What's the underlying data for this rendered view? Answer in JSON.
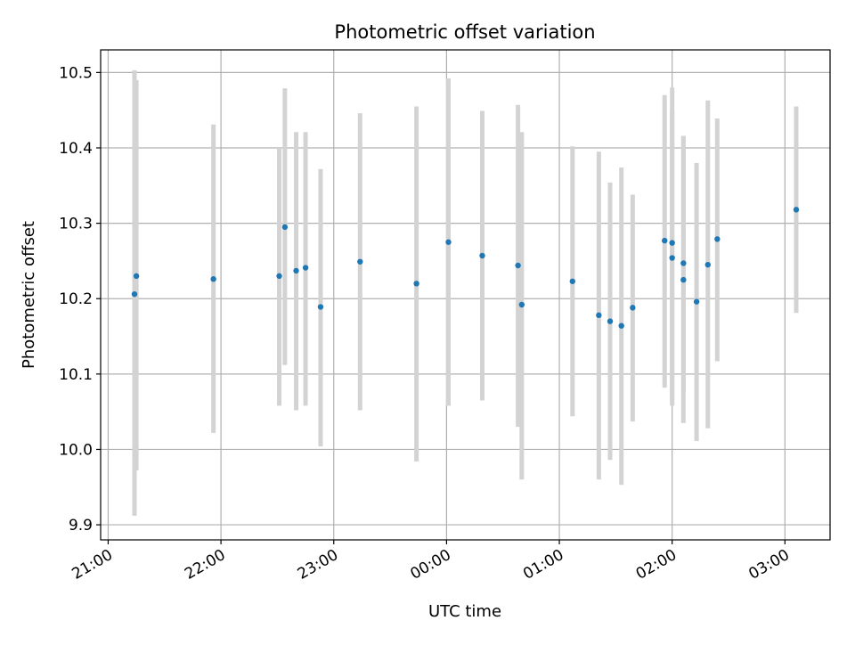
{
  "chart_data": {
    "type": "scatter",
    "title": "Photometric offset variation",
    "xlabel": "UTC time",
    "ylabel": "Photometric offset",
    "xlim": [
      "20:56",
      "03:24"
    ],
    "ylim": [
      9.88,
      10.53
    ],
    "xticks": [
      "21:00",
      "22:00",
      "23:00",
      "00:00",
      "01:00",
      "02:00",
      "03:00"
    ],
    "yticks": [
      9.9,
      10.0,
      10.1,
      10.2,
      10.3,
      10.4,
      10.5
    ],
    "grid": true,
    "colors": {
      "point": "#1f77b4",
      "errorbar": "#d3d3d3",
      "grid": "#b0b0b0"
    },
    "points": [
      {
        "x": "21:14",
        "y": 10.206,
        "err_low": 9.912,
        "err_high": 10.503
      },
      {
        "x": "21:15",
        "y": 10.23,
        "err_low": 9.972,
        "err_high": 10.49
      },
      {
        "x": "21:56",
        "y": 10.226,
        "err_low": 10.022,
        "err_high": 10.431
      },
      {
        "x": "22:31",
        "y": 10.23,
        "err_low": 10.058,
        "err_high": 10.4
      },
      {
        "x": "22:34",
        "y": 10.295,
        "err_low": 10.112,
        "err_high": 10.479
      },
      {
        "x": "22:40",
        "y": 10.237,
        "err_low": 10.052,
        "err_high": 10.421
      },
      {
        "x": "22:45",
        "y": 10.241,
        "err_low": 10.058,
        "err_high": 10.421
      },
      {
        "x": "22:53",
        "y": 10.189,
        "err_low": 10.004,
        "err_high": 10.372
      },
      {
        "x": "23:14",
        "y": 10.249,
        "err_low": 10.052,
        "err_high": 10.446
      },
      {
        "x": "23:44",
        "y": 10.22,
        "err_low": 9.984,
        "err_high": 10.455
      },
      {
        "x": "00:01",
        "y": 10.275,
        "err_low": 10.058,
        "err_high": 10.492
      },
      {
        "x": "00:19",
        "y": 10.257,
        "err_low": 10.065,
        "err_high": 10.449
      },
      {
        "x": "00:38",
        "y": 10.244,
        "err_low": 10.03,
        "err_high": 10.457
      },
      {
        "x": "00:40",
        "y": 10.192,
        "err_low": 9.96,
        "err_high": 10.421
      },
      {
        "x": "01:07",
        "y": 10.223,
        "err_low": 10.044,
        "err_high": 10.402
      },
      {
        "x": "01:21",
        "y": 10.178,
        "err_low": 9.96,
        "err_high": 10.395
      },
      {
        "x": "01:27",
        "y": 10.17,
        "err_low": 9.986,
        "err_high": 10.354
      },
      {
        "x": "01:33",
        "y": 10.164,
        "err_low": 9.953,
        "err_high": 10.374
      },
      {
        "x": "01:39",
        "y": 10.188,
        "err_low": 10.037,
        "err_high": 10.338
      },
      {
        "x": "01:56",
        "y": 10.277,
        "err_low": 10.082,
        "err_high": 10.47
      },
      {
        "x": "02:00",
        "y": 10.274,
        "err_low": 10.058,
        "err_high": 10.48
      },
      {
        "x": "02:00",
        "y": 10.254,
        "err_low": 10.065,
        "err_high": 10.448
      },
      {
        "x": "02:06",
        "y": 10.247,
        "err_low": 10.077,
        "err_high": 10.416
      },
      {
        "x": "02:06",
        "y": 10.225,
        "err_low": 10.035,
        "err_high": 10.415
      },
      {
        "x": "02:13",
        "y": 10.196,
        "err_low": 10.011,
        "err_high": 10.38
      },
      {
        "x": "02:19",
        "y": 10.245,
        "err_low": 10.028,
        "err_high": 10.463
      },
      {
        "x": "02:24",
        "y": 10.279,
        "err_low": 10.117,
        "err_high": 10.439
      },
      {
        "x": "03:06",
        "y": 10.318,
        "err_low": 10.181,
        "err_high": 10.455
      }
    ]
  }
}
